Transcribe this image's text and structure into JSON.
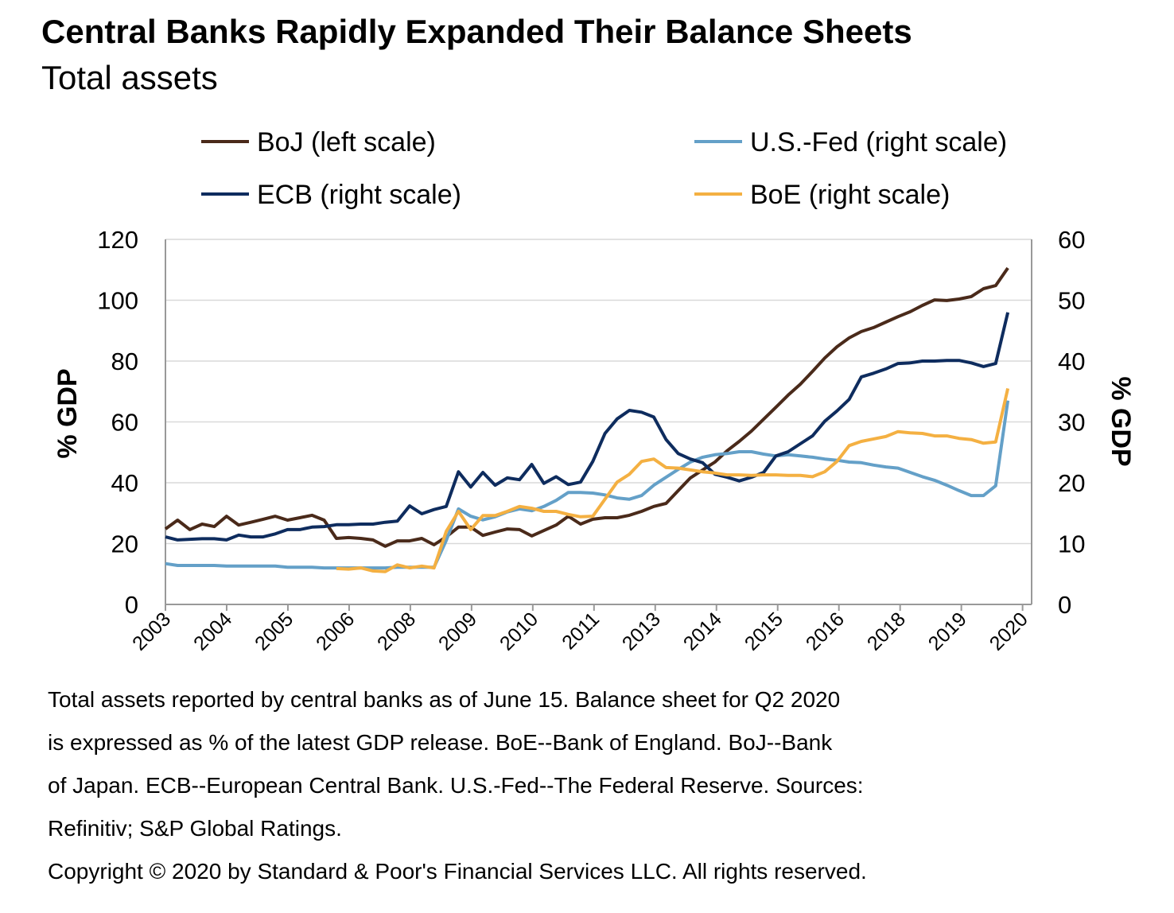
{
  "title": "Central Banks Rapidly Expanded Their Balance Sheets",
  "subtitle": "Total assets",
  "footnotes": [
    "Total assets reported by central banks as of June 15. Balance sheet for Q2 2020",
    "is expressed as % of the latest GDP release. BoE--Bank of England. BoJ--Bank",
    "of Japan. ECB--European Central Bank. U.S.-Fed--The Federal Reserve. Sources:",
    "Refinitiv; S&P Global Ratings.",
    "Copyright © 2020 by Standard & Poor's Financial Services LLC. All rights reserved."
  ],
  "chart_data": {
    "type": "line",
    "ylabel_left": "% GDP",
    "ylabel_right": "% GDP",
    "ylim_left": [
      0,
      120
    ],
    "ylim_right": [
      0,
      60
    ],
    "yticks_left": [
      "0",
      "20",
      "40",
      "60",
      "80",
      "100",
      "120"
    ],
    "yticks_right": [
      "0",
      "10",
      "20",
      "30",
      "40",
      "50",
      "60"
    ],
    "x_tick_labels": [
      "2003",
      "2004",
      "2005",
      "2006",
      "2008",
      "2009",
      "2010",
      "2011",
      "2013",
      "2014",
      "2015",
      "2016",
      "2018",
      "2019",
      "2020"
    ],
    "grid": true,
    "legend_position": "top",
    "series": [
      {
        "name": "BoJ (left scale)",
        "axis": "left",
        "color": "#4a2a1a",
        "start_index": 0,
        "values": [
          24.8,
          27.7,
          24.6,
          26.4,
          25.6,
          29,
          26.1,
          27,
          28,
          29,
          27.7,
          28.5,
          29.3,
          27.7,
          21.7,
          22,
          21.7,
          21.2,
          19.1,
          20.9,
          20.9,
          21.7,
          19.6,
          22.2,
          25.4,
          25.4,
          22.7,
          23.8,
          24.8,
          24.6,
          22.5,
          24.3,
          26.1,
          29,
          26.4,
          28,
          28.5,
          28.5,
          29.3,
          30.6,
          32.2,
          33.2,
          37.4,
          41.6,
          44.2,
          46.8,
          50.5,
          53.6,
          57,
          60.9,
          64.8,
          68.8,
          72.4,
          76.6,
          81,
          84.7,
          87.6,
          89.7,
          91,
          92.8,
          94.6,
          96.2,
          98.3,
          100.1,
          99.9,
          100.4,
          101.2,
          103.8,
          104.8,
          110.6
        ]
      },
      {
        "name": "U.S.-Fed (right scale)",
        "axis": "right",
        "color": "#64a0c8",
        "start_index": 0,
        "values": [
          6.7,
          6.4,
          6.4,
          6.4,
          6.4,
          6.3,
          6.3,
          6.3,
          6.3,
          6.3,
          6.1,
          6.1,
          6.1,
          6,
          6,
          6,
          6,
          6,
          6,
          6.1,
          6.1,
          6.1,
          6.1,
          10.5,
          15.7,
          14.5,
          13.9,
          14.4,
          15.2,
          15.7,
          15.4,
          16.1,
          17.1,
          18.4,
          18.4,
          18.3,
          18,
          17.5,
          17.3,
          17.9,
          19.6,
          20.9,
          22.2,
          23.4,
          24.2,
          24.6,
          24.8,
          25.1,
          25.1,
          24.7,
          24.4,
          24.6,
          24.4,
          24.2,
          23.9,
          23.7,
          23.4,
          23.3,
          22.9,
          22.6,
          22.4,
          21.7,
          21,
          20.4,
          19.6,
          18.7,
          17.9,
          17.9,
          19.5,
          33.5
        ]
      },
      {
        "name": "ECB (right scale)",
        "axis": "right",
        "color": "#0e2c5e",
        "start_index": 0,
        "values": [
          11.1,
          10.6,
          10.7,
          10.8,
          10.8,
          10.6,
          11.4,
          11.1,
          11.1,
          11.6,
          12.3,
          12.3,
          12.7,
          12.8,
          13.1,
          13.1,
          13.2,
          13.2,
          13.5,
          13.7,
          16.2,
          14.9,
          15.6,
          16.1,
          21.8,
          19.3,
          21.7,
          19.6,
          20.8,
          20.5,
          23,
          19.9,
          21,
          19.7,
          20.1,
          23.5,
          28.1,
          30.5,
          31.9,
          31.6,
          30.8,
          27.1,
          24.8,
          23.9,
          23.3,
          21.4,
          20.9,
          20.3,
          20.9,
          21.7,
          24.4,
          25.1,
          26.4,
          27.7,
          30.1,
          31.8,
          33.7,
          37.4,
          38,
          38.7,
          39.6,
          39.7,
          40,
          40,
          40.1,
          40.1,
          39.7,
          39.1,
          39.6,
          48
        ]
      },
      {
        "name": "BoE (right scale)",
        "axis": "right",
        "color": "#f4b042",
        "start_index": 14,
        "values": [
          5.9,
          5.8,
          6,
          5.5,
          5.4,
          6.5,
          6,
          6.3,
          6,
          12,
          15.3,
          12.3,
          14.6,
          14.6,
          15.3,
          16.1,
          15.8,
          15.3,
          15.3,
          14.8,
          14.4,
          14.5,
          17.3,
          20.1,
          21.4,
          23.5,
          23.9,
          22.5,
          22.4,
          22.1,
          21.8,
          21.6,
          21.3,
          21.3,
          21.2,
          21.3,
          21.3,
          21.2,
          21.2,
          21,
          21.8,
          23.5,
          26.1,
          26.8,
          27.2,
          27.6,
          28.4,
          28.2,
          28.1,
          27.7,
          27.7,
          27.3,
          27.1,
          26.5,
          26.7,
          35.5
        ]
      }
    ]
  }
}
